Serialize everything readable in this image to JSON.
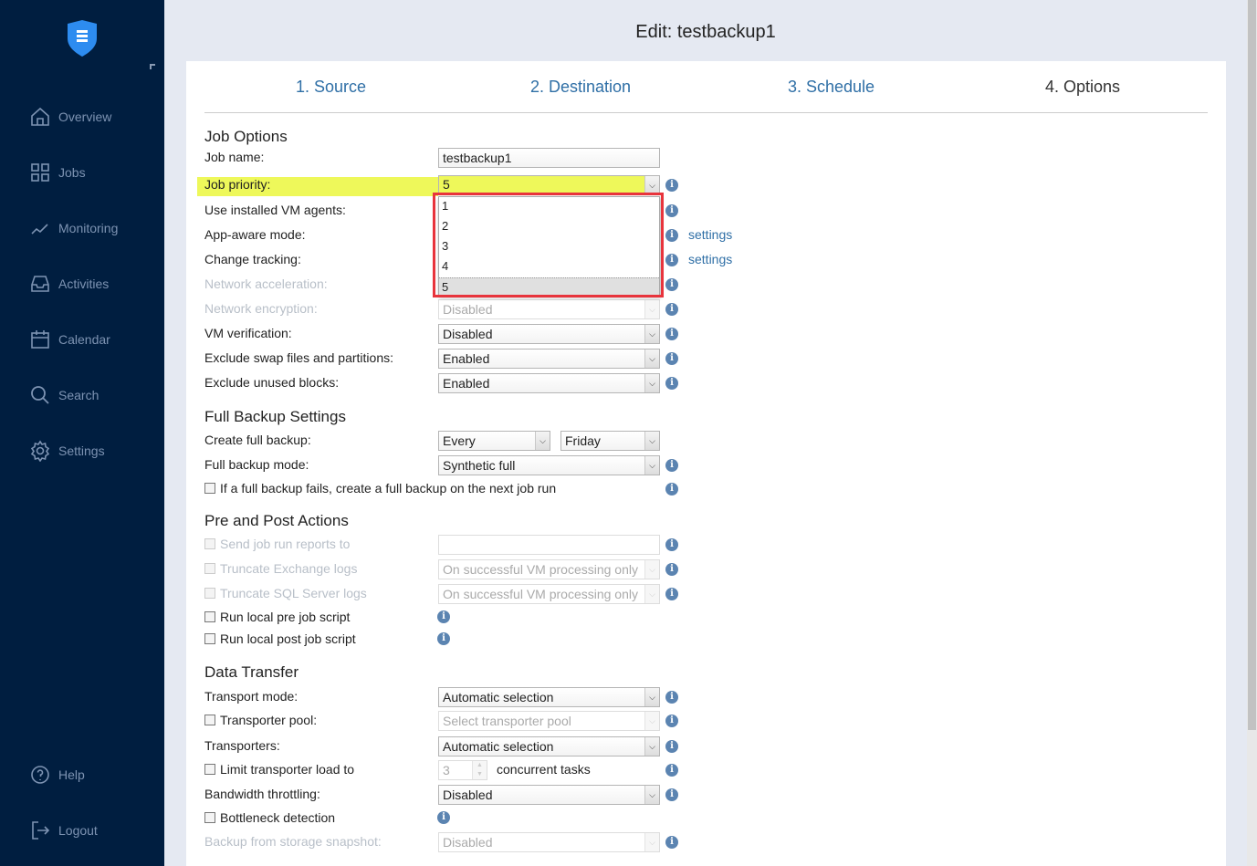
{
  "app": {
    "title": "Edit: testbackup1"
  },
  "sidebar": {
    "items": [
      {
        "label": "Overview",
        "icon": "home-icon"
      },
      {
        "label": "Jobs",
        "icon": "grid-icon"
      },
      {
        "label": "Monitoring",
        "icon": "chart-line-icon"
      },
      {
        "label": "Activities",
        "icon": "inbox-icon"
      },
      {
        "label": "Calendar",
        "icon": "calendar-icon"
      },
      {
        "label": "Search",
        "icon": "search-icon"
      },
      {
        "label": "Settings",
        "icon": "gear-icon"
      }
    ],
    "bottom": [
      {
        "label": "Help",
        "icon": "help-icon"
      },
      {
        "label": "Logout",
        "icon": "logout-icon"
      }
    ]
  },
  "tabs": [
    {
      "label": "1. Source"
    },
    {
      "label": "2. Destination"
    },
    {
      "label": "3. Schedule"
    },
    {
      "label": "4. Options"
    }
  ],
  "sections": {
    "job_options": "Job Options",
    "full_backup": "Full Backup Settings",
    "pre_post": "Pre and Post Actions",
    "data_transfer": "Data Transfer"
  },
  "rows": [
    {
      "label": "Job name:",
      "input": "testbackup1"
    },
    {
      "label": "Job priority:",
      "select": "5",
      "info": true
    },
    {
      "label": "Use installed VM agents:",
      "info": true
    },
    {
      "label": "App-aware mode:",
      "info": true,
      "link": "settings"
    },
    {
      "label": "Change tracking:",
      "info": true,
      "link": "settings"
    },
    {
      "label": "Network acceleration:",
      "disabled": true,
      "info": true
    },
    {
      "label": "Network encryption:",
      "disabled": true,
      "select": "Disabled",
      "info": true
    },
    {
      "label": "VM verification:",
      "select": "Disabled",
      "info": true
    },
    {
      "label": "Exclude swap files and partitions:",
      "select": "Enabled",
      "info": true
    },
    {
      "label": "Exclude unused blocks:",
      "select": "Enabled",
      "info": true
    },
    {
      "label": "Create full backup:",
      "select": "Every",
      "select2": "Friday"
    },
    {
      "label": "Full backup mode:",
      "select": "Synthetic full",
      "info": true
    },
    {
      "label": "If a full backup fails, create a full backup on the next job run",
      "checkbox": true,
      "info": true
    },
    {
      "label": "Send job run reports to",
      "checkbox": true,
      "disabled": true,
      "input": "",
      "info": true
    },
    {
      "label": "Truncate Exchange logs",
      "checkbox": true,
      "disabled": true,
      "select": "On successful VM processing only",
      "info": true
    },
    {
      "label": "Truncate SQL Server logs",
      "checkbox": true,
      "disabled": true,
      "select": "On successful VM processing only",
      "info": true
    },
    {
      "label": "Run local pre job script",
      "checkbox": true,
      "info_left": true
    },
    {
      "label": "Run local post job script",
      "checkbox": true,
      "info_left": true
    },
    {
      "label": "Transport mode:",
      "select": "Automatic selection",
      "info": true
    },
    {
      "label": "Transporter pool:",
      "checkbox": true,
      "select": "Select transporter pool",
      "select_disabled": true,
      "info": true
    },
    {
      "label": "Transporters:",
      "select": "Automatic selection",
      "info": true
    },
    {
      "label": "Limit transporter load to",
      "checkbox": true,
      "stepper": "3",
      "suffix": "concurrent tasks",
      "info": true
    },
    {
      "label": "Bandwidth throttling:",
      "select": "Disabled",
      "info": true
    },
    {
      "label": "Bottleneck detection",
      "checkbox": true,
      "info_left": true
    },
    {
      "label": "Backup from storage snapshot:",
      "disabled": true,
      "select": "Disabled",
      "info": true
    }
  ],
  "priority_options": [
    "1",
    "2",
    "3",
    "4",
    "5"
  ],
  "priority_selected": "5",
  "colors": {
    "sidebar": "#001e40",
    "accent": "#2f6fa6",
    "highlight": "#eef85a",
    "annotation": "#e8343c"
  }
}
